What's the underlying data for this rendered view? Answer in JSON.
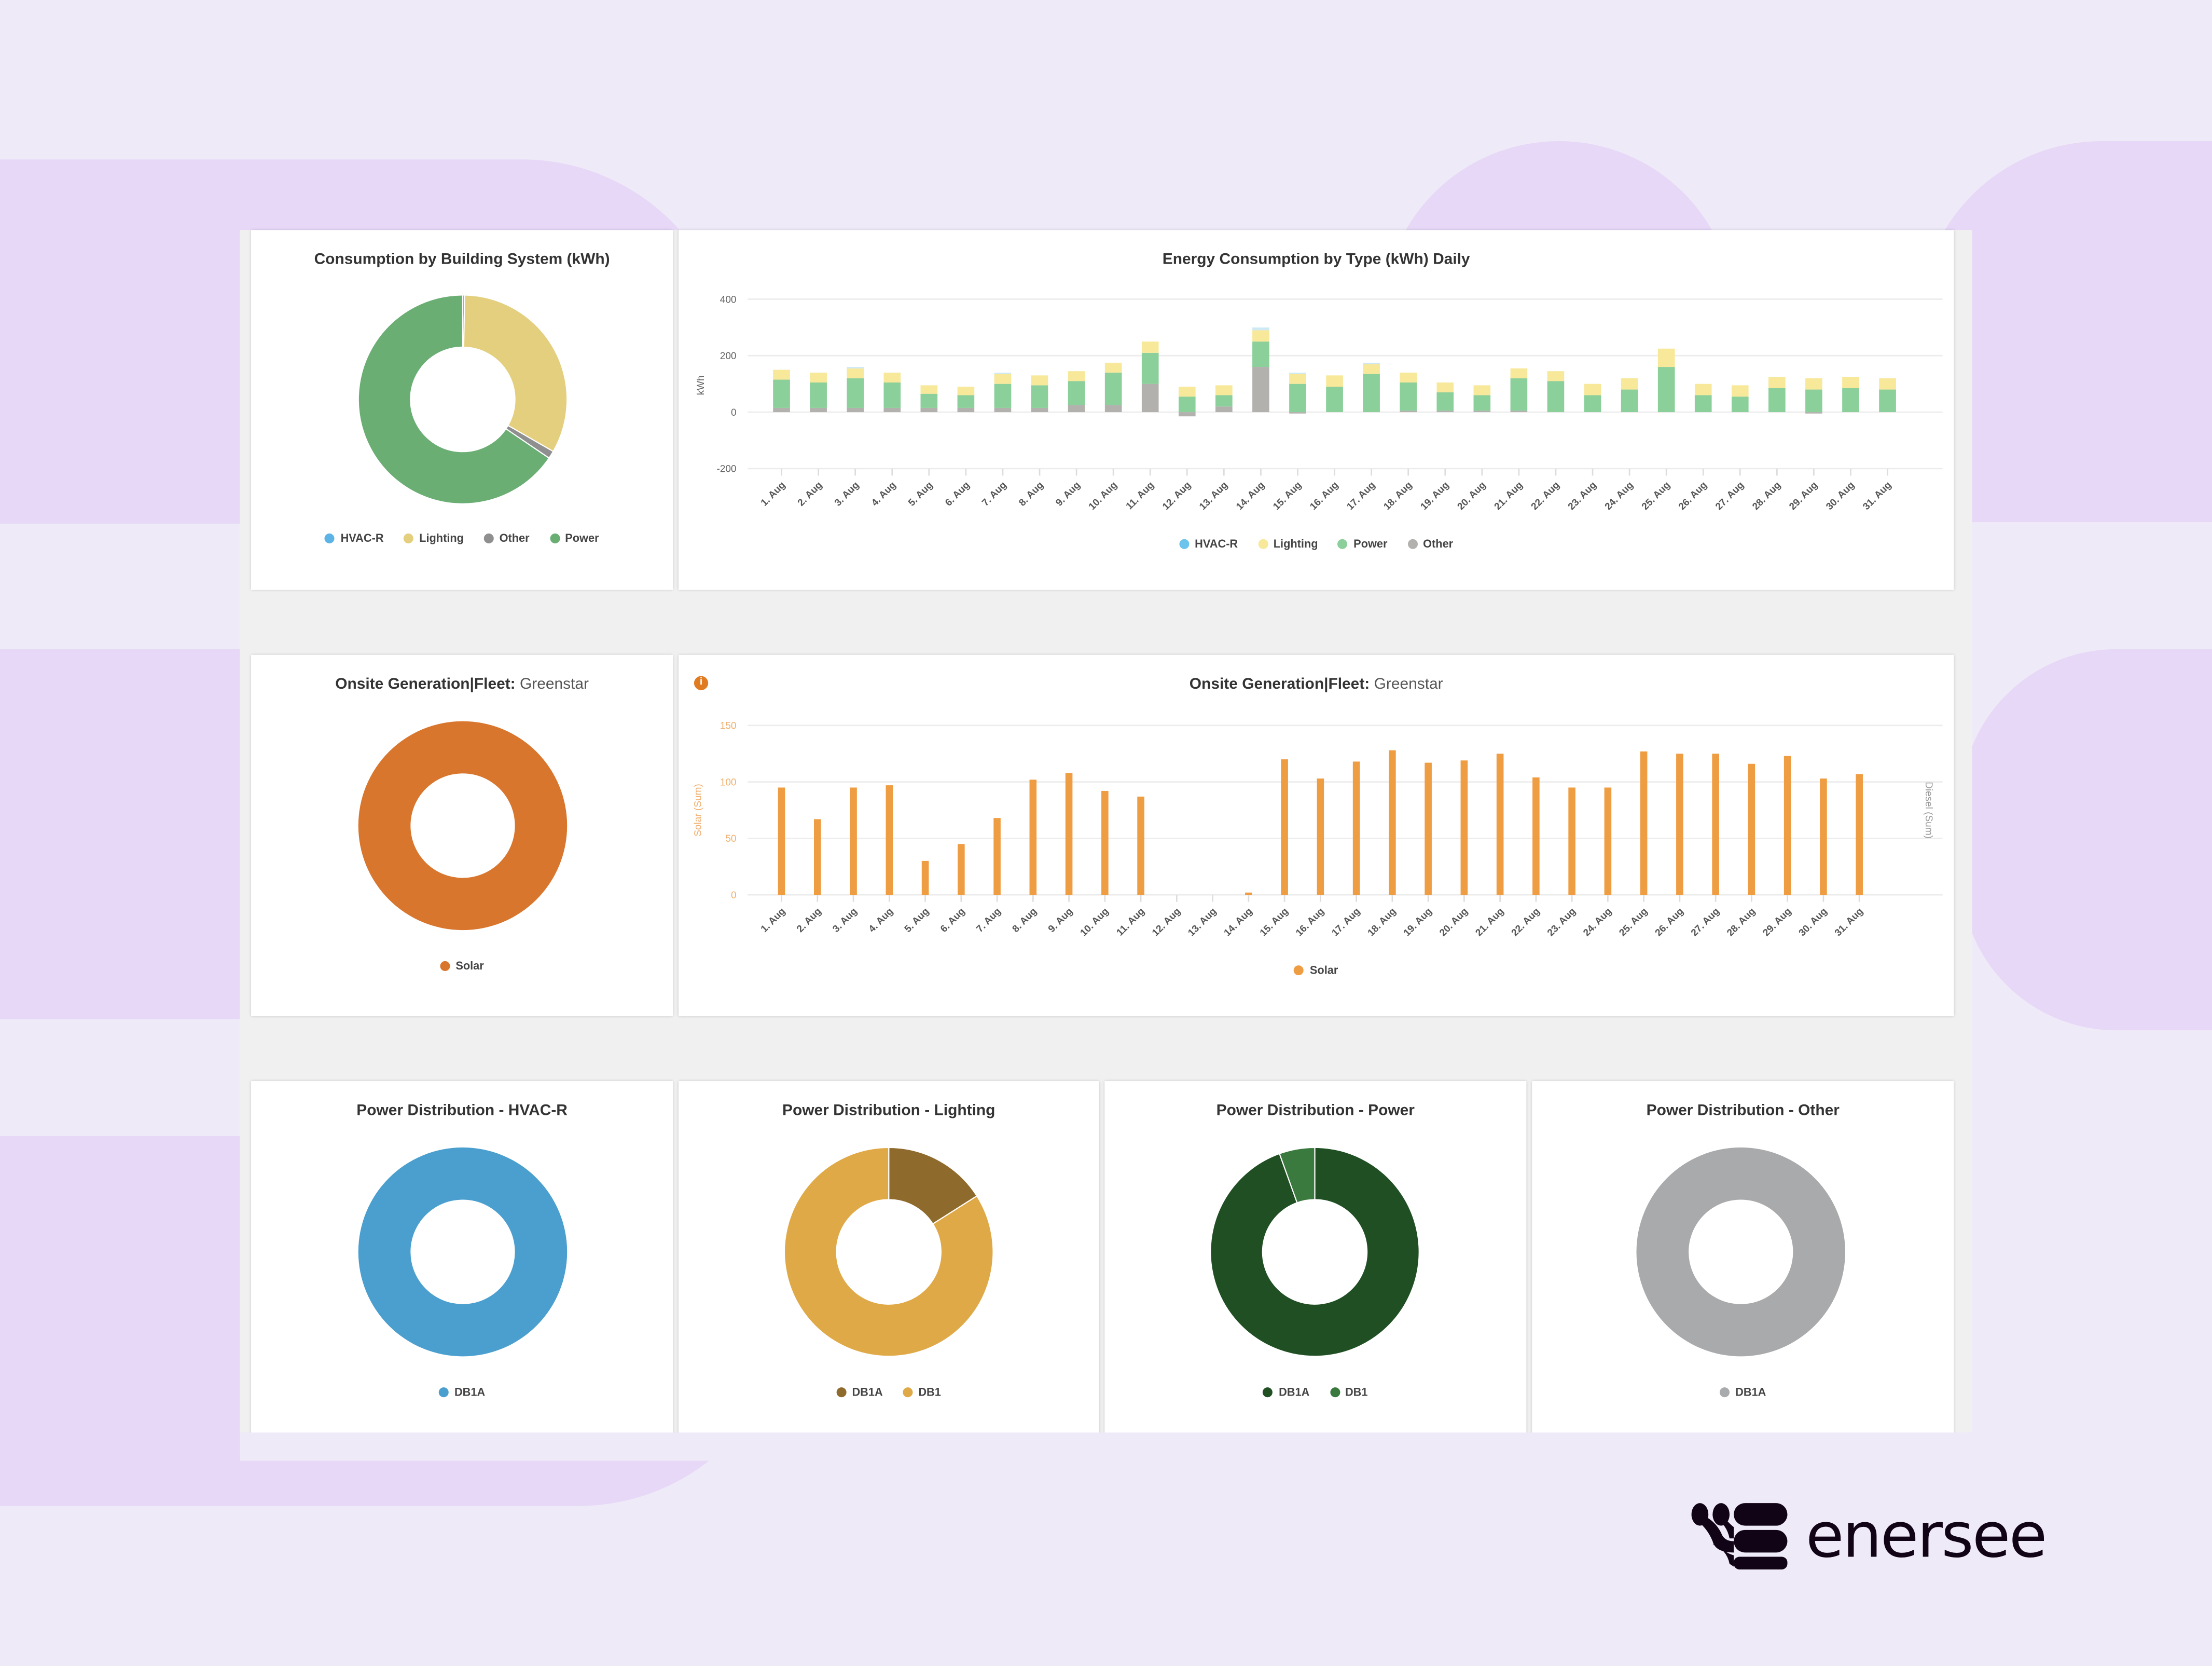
{
  "brand": {
    "name": "enersee"
  },
  "colors": {
    "hvac": "#6cc3ec",
    "lighting": "#f7e89a",
    "power": "#8bcf9a",
    "other": "#b3b1ae",
    "solar": "#ef9d43",
    "background": "#efeaf8"
  },
  "cards": {
    "consumption_donut": {
      "title": "Consumption by Building System (kWh)",
      "legend": [
        "HVAC-R",
        "Lighting",
        "Other",
        "Power"
      ]
    },
    "energy_daily": {
      "title": "Energy Consumption by Type (kWh) Daily",
      "ylabel": "kWh",
      "legend": [
        "HVAC-R",
        "Lighting",
        "Power",
        "Other"
      ]
    },
    "gen_donut": {
      "title_bold": "Onsite Generation|Fleet:",
      "title_light": " Greenstar",
      "legend": [
        "Solar"
      ]
    },
    "gen_bars": {
      "title_bold": "Onsite Generation|Fleet:",
      "title_light": " Greenstar",
      "ylabel_left": "Solar (Sum)",
      "ylabel_right": "Diesel (Sum)",
      "legend": [
        "Solar"
      ],
      "info_icon": "i"
    },
    "dist_hvac": {
      "title": "Power Distribution - HVAC-R",
      "legend": [
        "DB1A"
      ]
    },
    "dist_lighting": {
      "title": "Power Distribution - Lighting",
      "legend": [
        "DB1A",
        "DB1"
      ]
    },
    "dist_power": {
      "title": "Power Distribution - Power",
      "legend": [
        "DB1A",
        "DB1"
      ]
    },
    "dist_other": {
      "title": "Power Distribution - Other",
      "legend": [
        "DB1A"
      ]
    }
  },
  "chart_data": [
    {
      "type": "pie",
      "title": "Consumption by Building System (kWh)",
      "donut": true,
      "labels": [
        "HVAC-R",
        "Lighting",
        "Other",
        "Power"
      ],
      "values": [
        0.3,
        33,
        1.2,
        65.5
      ],
      "colors": [
        "#5cb4e6",
        "#e4cf7e",
        "#8f8f8f",
        "#6aae74"
      ]
    },
    {
      "type": "bar",
      "stacked": true,
      "title": "Energy Consumption by Type (kWh) Daily",
      "ylabel": "kWh",
      "ylim": [
        -200,
        400
      ],
      "yticks": [
        400,
        200,
        0,
        -200
      ],
      "grid": true,
      "legend": "bottom",
      "categories": [
        "1. Aug",
        "2. Aug",
        "3. Aug",
        "4. Aug",
        "5. Aug",
        "6. Aug",
        "7. Aug",
        "8. Aug",
        "9. Aug",
        "10. Aug",
        "11. Aug",
        "12. Aug",
        "13. Aug",
        "14. Aug",
        "15. Aug",
        "16. Aug",
        "17. Aug",
        "18. Aug",
        "19. Aug",
        "20. Aug",
        "21. Aug",
        "22. Aug",
        "23. Aug",
        "24. Aug",
        "25. Aug",
        "26. Aug",
        "27. Aug",
        "28. Aug",
        "29. Aug",
        "30. Aug",
        "31. Aug"
      ],
      "series": [
        {
          "name": "Other",
          "values": [
            15,
            15,
            15,
            15,
            15,
            15,
            15,
            15,
            25,
            25,
            100,
            -15,
            20,
            160,
            -5,
            0,
            0,
            5,
            5,
            5,
            5,
            0,
            0,
            0,
            0,
            0,
            0,
            0,
            -5,
            0,
            0
          ]
        },
        {
          "name": "Power",
          "values": [
            100,
            90,
            105,
            90,
            50,
            45,
            85,
            80,
            85,
            115,
            110,
            55,
            40,
            90,
            100,
            90,
            135,
            100,
            65,
            55,
            115,
            110,
            60,
            80,
            160,
            60,
            55,
            85,
            80,
            85,
            80
          ]
        },
        {
          "name": "Lighting",
          "values": [
            35,
            35,
            35,
            35,
            30,
            30,
            35,
            35,
            35,
            35,
            40,
            35,
            35,
            40,
            35,
            40,
            35,
            35,
            35,
            35,
            35,
            35,
            40,
            40,
            65,
            40,
            40,
            40,
            40,
            40,
            40
          ]
        },
        {
          "name": "HVAC-R",
          "values": [
            0,
            0,
            5,
            0,
            0,
            0,
            5,
            0,
            0,
            0,
            0,
            0,
            0,
            10,
            5,
            0,
            5,
            0,
            0,
            0,
            0,
            0,
            0,
            0,
            0,
            0,
            0,
            0,
            0,
            0,
            0
          ]
        }
      ]
    },
    {
      "type": "pie",
      "title": "Onsite Generation|Fleet: Greenstar",
      "donut": true,
      "labels": [
        "Solar"
      ],
      "values": [
        100
      ],
      "colors": [
        "#d9762e"
      ]
    },
    {
      "type": "bar",
      "title": "Onsite Generation|Fleet: Greenstar",
      "ylabel": "Solar (Sum)",
      "ylabel_right": "Diesel (Sum)",
      "ylim": [
        0,
        150
      ],
      "yticks": [
        150,
        100,
        50,
        0
      ],
      "grid": true,
      "legend": "bottom",
      "categories": [
        "1. Aug",
        "2. Aug",
        "3. Aug",
        "4. Aug",
        "5. Aug",
        "6. Aug",
        "7. Aug",
        "8. Aug",
        "9. Aug",
        "10. Aug",
        "11. Aug",
        "12. Aug",
        "13. Aug",
        "14. Aug",
        "15. Aug",
        "16. Aug",
        "17. Aug",
        "18. Aug",
        "19. Aug",
        "20. Aug",
        "21. Aug",
        "22. Aug",
        "23. Aug",
        "24. Aug",
        "25. Aug",
        "26. Aug",
        "27. Aug",
        "28. Aug",
        "29. Aug",
        "30. Aug",
        "31. Aug"
      ],
      "series": [
        {
          "name": "Solar",
          "values": [
            95,
            67,
            95,
            97,
            30,
            45,
            68,
            102,
            108,
            92,
            87,
            0,
            0,
            2,
            120,
            103,
            118,
            128,
            117,
            119,
            125,
            104,
            95,
            95,
            127,
            125,
            125,
            116,
            123,
            103,
            107
          ]
        }
      ]
    },
    {
      "type": "pie",
      "title": "Power Distribution - HVAC-R",
      "donut": true,
      "labels": [
        "DB1A"
      ],
      "values": [
        100
      ],
      "colors": [
        "#4a9fcf"
      ]
    },
    {
      "type": "pie",
      "title": "Power Distribution - Lighting",
      "donut": true,
      "labels": [
        "DB1A",
        "DB1"
      ],
      "values": [
        16,
        84
      ],
      "colors": [
        "#8e6a2c",
        "#e0a948"
      ]
    },
    {
      "type": "pie",
      "title": "Power Distribution - Power",
      "donut": true,
      "labels": [
        "DB1A",
        "DB1"
      ],
      "values": [
        94.5,
        5.5
      ],
      "colors": [
        "#1f4f22",
        "#3a7a3e"
      ]
    },
    {
      "type": "pie",
      "title": "Power Distribution - Other",
      "donut": true,
      "labels": [
        "DB1A"
      ],
      "values": [
        100
      ],
      "colors": [
        "#a9aaab"
      ]
    }
  ]
}
